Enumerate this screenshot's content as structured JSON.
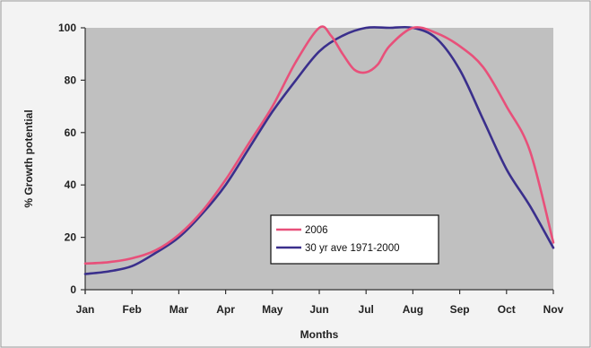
{
  "chart_data": {
    "type": "line",
    "title": "",
    "xlabel": "Months",
    "ylabel": "% Growth potential",
    "categories": [
      "Jan",
      "Feb",
      "Mar",
      "Apr",
      "May",
      "Jun",
      "Jul",
      "Aug",
      "Sep",
      "Oct",
      "Nov"
    ],
    "ylim": [
      0,
      100
    ],
    "yticks": [
      0,
      20,
      40,
      60,
      80,
      100
    ],
    "grid": false,
    "plot_background": "#c0c0c0",
    "legend_position": "inside-bottom-center",
    "series": [
      {
        "name": "2006",
        "color": "#e8507a",
        "x": [
          0,
          0.5,
          1,
          1.5,
          2,
          2.5,
          3,
          3.5,
          4,
          4.5,
          5,
          5.25,
          5.5,
          5.75,
          6,
          6.25,
          6.5,
          7,
          7.5,
          8,
          8.5,
          9,
          9.5,
          10
        ],
        "y": [
          10,
          10.5,
          12,
          15,
          21,
          30,
          42,
          56,
          70,
          87,
          100,
          97,
          90,
          84,
          83,
          86,
          93,
          100,
          98,
          93,
          85,
          70,
          53,
          18
        ]
      },
      {
        "name": "30 yr ave 1971-2000",
        "color": "#3a2f8c",
        "x": [
          0,
          0.5,
          1,
          1.5,
          2,
          2.5,
          3,
          3.5,
          4,
          4.5,
          5,
          5.5,
          6,
          6.5,
          7,
          7.5,
          8,
          8.5,
          9,
          9.5,
          10
        ],
        "y": [
          6,
          7,
          9,
          14,
          20,
          29,
          40,
          54,
          68,
          80,
          91,
          97,
          100,
          100,
          100,
          96,
          84,
          65,
          46,
          32,
          16
        ]
      }
    ]
  }
}
